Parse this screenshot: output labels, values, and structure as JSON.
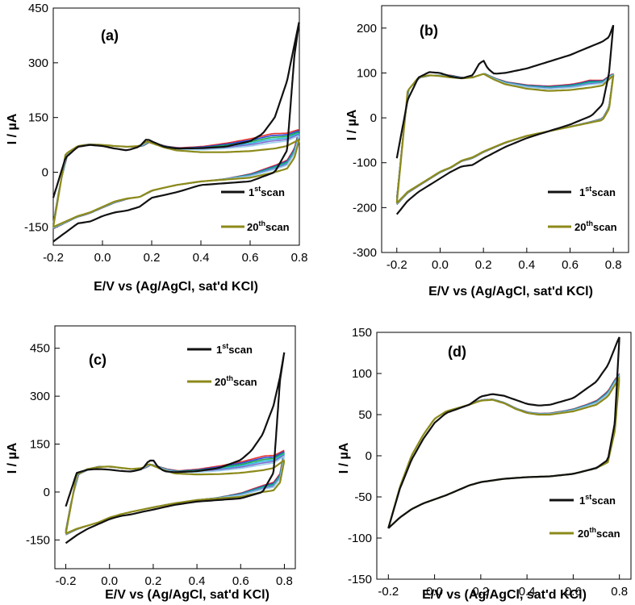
{
  "colors": {
    "first_scan": "#111111",
    "last_scan": "#8c8a1a",
    "mid_scans": [
      "#e6312b",
      "#2a45d6",
      "#1aa84a",
      "#29b7d8",
      "#7a6ad0",
      "#9bd0e8"
    ]
  },
  "chart_data": [
    {
      "type": "line",
      "panel_label": "(a)",
      "xlabel": "E/V  vs (Ag/AgCl, sat'd KCl)",
      "ylabel": "I / µA",
      "xlim": [
        -0.2,
        0.8
      ],
      "ylim": [
        -200,
        450
      ],
      "xticks": [
        -0.2,
        0.0,
        0.2,
        0.4,
        0.6,
        0.8
      ],
      "yticks": [
        -150,
        0,
        150,
        300,
        450
      ],
      "legend_position": "bottom-right",
      "series": [
        {
          "name": "1st scan",
          "anodic_x": [
            -0.2,
            -0.15,
            -0.1,
            -0.05,
            0.0,
            0.05,
            0.1,
            0.15,
            0.18,
            0.2,
            0.25,
            0.3,
            0.4,
            0.5,
            0.6,
            0.65,
            0.7,
            0.75,
            0.78,
            0.8
          ],
          "anodic_y": [
            -70,
            40,
            70,
            75,
            72,
            65,
            60,
            70,
            92,
            85,
            70,
            65,
            66,
            70,
            85,
            105,
            150,
            250,
            350,
            415
          ],
          "cathodic_x": [
            0.8,
            0.78,
            0.75,
            0.7,
            0.6,
            0.5,
            0.4,
            0.3,
            0.2,
            0.15,
            0.1,
            0.05,
            0.0,
            -0.05,
            -0.1,
            -0.15,
            -0.2
          ],
          "cathodic_y": [
            415,
            320,
            60,
            0,
            -25,
            -30,
            -35,
            -55,
            -70,
            -95,
            -105,
            -110,
            -120,
            -135,
            -140,
            -165,
            -190
          ]
        },
        {
          "name": "20th scan",
          "anodic_x": [
            -0.2,
            -0.15,
            -0.1,
            -0.05,
            0.0,
            0.05,
            0.1,
            0.15,
            0.18,
            0.2,
            0.25,
            0.3,
            0.4,
            0.5,
            0.6,
            0.7,
            0.75,
            0.8
          ],
          "anodic_y": [
            -150,
            50,
            72,
            76,
            75,
            72,
            70,
            72,
            85,
            80,
            68,
            60,
            55,
            55,
            58,
            65,
            72,
            90
          ],
          "cathodic_x": [
            0.8,
            0.78,
            0.75,
            0.7,
            0.6,
            0.5,
            0.4,
            0.3,
            0.2,
            0.15,
            0.1,
            0.05,
            0.0,
            -0.05,
            -0.1,
            -0.15,
            -0.2
          ],
          "cathodic_y": [
            90,
            40,
            10,
            0,
            -15,
            -20,
            -25,
            -35,
            -50,
            -68,
            -72,
            -80,
            -95,
            -110,
            -120,
            -135,
            -150
          ]
        }
      ]
    },
    {
      "type": "line",
      "panel_label": "(b)",
      "xlabel": "E/V  vs (Ag/AgCl, sat'd KCl)",
      "ylabel": "I / µA",
      "xlim": [
        -0.27,
        0.87
      ],
      "ylim": [
        -300,
        250
      ],
      "xticks": [
        -0.2,
        0.0,
        0.2,
        0.4,
        0.6,
        0.8
      ],
      "yticks": [
        -300,
        -200,
        -100,
        0,
        100,
        200
      ],
      "legend_position": "bottom-right",
      "series": [
        {
          "name": "1st scan",
          "anodic_x": [
            -0.2,
            -0.15,
            -0.1,
            -0.05,
            0.0,
            0.05,
            0.1,
            0.15,
            0.18,
            0.2,
            0.22,
            0.25,
            0.3,
            0.4,
            0.5,
            0.6,
            0.7,
            0.75,
            0.78,
            0.8
          ],
          "anodic_y": [
            -90,
            40,
            90,
            102,
            100,
            92,
            88,
            95,
            120,
            128,
            110,
            98,
            100,
            110,
            125,
            140,
            160,
            170,
            180,
            207
          ],
          "cathodic_x": [
            0.8,
            0.78,
            0.75,
            0.7,
            0.6,
            0.5,
            0.4,
            0.3,
            0.2,
            0.15,
            0.1,
            0.05,
            0.0,
            -0.05,
            -0.1,
            -0.15,
            -0.2
          ],
          "cathodic_y": [
            207,
            100,
            30,
            5,
            -15,
            -30,
            -45,
            -65,
            -90,
            -105,
            -108,
            -120,
            -135,
            -150,
            -165,
            -185,
            -215
          ]
        },
        {
          "name": "20th scan",
          "anodic_x": [
            -0.2,
            -0.15,
            -0.1,
            -0.05,
            0.0,
            0.05,
            0.1,
            0.15,
            0.2,
            0.25,
            0.3,
            0.4,
            0.5,
            0.6,
            0.7,
            0.75,
            0.8
          ],
          "anodic_y": [
            -190,
            60,
            90,
            95,
            93,
            90,
            88,
            90,
            98,
            85,
            75,
            65,
            60,
            62,
            68,
            72,
            95
          ],
          "cathodic_x": [
            0.8,
            0.78,
            0.75,
            0.7,
            0.6,
            0.5,
            0.4,
            0.3,
            0.2,
            0.15,
            0.1,
            0.05,
            0.0,
            -0.05,
            -0.1,
            -0.15,
            -0.2
          ],
          "cathodic_y": [
            95,
            20,
            -5,
            -10,
            -20,
            -30,
            -40,
            -55,
            -75,
            -88,
            -95,
            -110,
            -120,
            -135,
            -150,
            -165,
            -190
          ]
        }
      ]
    },
    {
      "type": "line",
      "panel_label": "(c)",
      "xlabel": "E/V  vs (Ag/AgCl, sat'd KCl)",
      "ylabel": "I / µA",
      "xlim": [
        -0.25,
        0.85
      ],
      "ylim": [
        -240,
        520
      ],
      "xticks": [
        -0.2,
        0.0,
        0.2,
        0.4,
        0.6,
        0.8
      ],
      "yticks": [
        -150,
        0,
        150,
        300,
        450
      ],
      "legend_position": "top-right",
      "series": [
        {
          "name": "1st scan",
          "anodic_x": [
            -0.2,
            -0.15,
            -0.1,
            -0.05,
            0.0,
            0.05,
            0.1,
            0.15,
            0.18,
            0.2,
            0.22,
            0.25,
            0.3,
            0.4,
            0.5,
            0.6,
            0.65,
            0.7,
            0.75,
            0.78,
            0.8
          ],
          "anodic_y": [
            -45,
            60,
            70,
            72,
            70,
            66,
            64,
            72,
            98,
            100,
            80,
            65,
            62,
            65,
            75,
            100,
            130,
            180,
            270,
            360,
            440
          ],
          "cathodic_x": [
            0.8,
            0.78,
            0.75,
            0.7,
            0.6,
            0.5,
            0.4,
            0.3,
            0.2,
            0.15,
            0.1,
            0.05,
            0.0,
            -0.05,
            -0.1,
            -0.15,
            -0.2
          ],
          "cathodic_y": [
            440,
            350,
            60,
            0,
            -20,
            -25,
            -30,
            -40,
            -55,
            -62,
            -70,
            -75,
            -85,
            -100,
            -115,
            -135,
            -160
          ]
        },
        {
          "name": "20th scan",
          "anodic_x": [
            -0.2,
            -0.15,
            -0.1,
            -0.05,
            0.0,
            0.05,
            0.1,
            0.15,
            0.18,
            0.2,
            0.25,
            0.3,
            0.4,
            0.5,
            0.6,
            0.7,
            0.75,
            0.8
          ],
          "anodic_y": [
            -130,
            55,
            72,
            78,
            80,
            76,
            72,
            75,
            88,
            82,
            68,
            58,
            55,
            56,
            60,
            68,
            75,
            100
          ],
          "cathodic_x": [
            0.8,
            0.78,
            0.75,
            0.7,
            0.6,
            0.5,
            0.4,
            0.3,
            0.2,
            0.15,
            0.1,
            0.05,
            0.0,
            -0.05,
            -0.1,
            -0.15,
            -0.2
          ],
          "cathodic_y": [
            100,
            30,
            5,
            0,
            -15,
            -20,
            -25,
            -35,
            -48,
            -55,
            -62,
            -70,
            -80,
            -95,
            -105,
            -115,
            -130
          ]
        }
      ]
    },
    {
      "type": "line",
      "panel_label": "(d)",
      "xlabel": "E/V  vs (Ag/AgCl, sat'd KCl)",
      "ylabel": "I / µA",
      "xlim": [
        -0.25,
        0.85
      ],
      "ylim": [
        -150,
        150
      ],
      "xticks": [
        -0.2,
        0.0,
        0.2,
        0.4,
        0.6,
        0.8
      ],
      "yticks": [
        -150,
        -100,
        -50,
        0,
        50,
        100,
        150
      ],
      "legend_position": "bottom-right",
      "series": [
        {
          "name": "1st scan",
          "anodic_x": [
            -0.2,
            -0.15,
            -0.1,
            -0.05,
            0.0,
            0.05,
            0.1,
            0.15,
            0.2,
            0.25,
            0.3,
            0.35,
            0.4,
            0.45,
            0.5,
            0.6,
            0.7,
            0.75,
            0.8
          ],
          "anodic_y": [
            -88,
            -40,
            -5,
            20,
            40,
            52,
            57,
            62,
            72,
            75,
            73,
            68,
            63,
            61,
            62,
            70,
            90,
            110,
            145
          ],
          "cathodic_x": [
            0.8,
            0.78,
            0.75,
            0.7,
            0.6,
            0.5,
            0.4,
            0.3,
            0.2,
            0.15,
            0.1,
            0.05,
            0.0,
            -0.05,
            -0.1,
            -0.15,
            -0.2
          ],
          "cathodic_y": [
            145,
            40,
            -5,
            -15,
            -22,
            -25,
            -26,
            -28,
            -32,
            -36,
            -42,
            -48,
            -53,
            -58,
            -65,
            -75,
            -88
          ]
        },
        {
          "name": "20th scan",
          "anodic_x": [
            -0.2,
            -0.15,
            -0.1,
            -0.05,
            0.0,
            0.05,
            0.1,
            0.15,
            0.2,
            0.25,
            0.3,
            0.35,
            0.4,
            0.45,
            0.5,
            0.6,
            0.7,
            0.75,
            0.8
          ],
          "anodic_y": [
            -88,
            -38,
            0,
            25,
            45,
            54,
            58,
            62,
            67,
            68,
            64,
            57,
            52,
            50,
            50,
            54,
            62,
            72,
            95
          ],
          "cathodic_x": [
            0.8,
            0.78,
            0.75,
            0.7,
            0.6,
            0.5,
            0.4,
            0.3,
            0.2,
            0.15,
            0.1,
            0.05,
            0.0,
            -0.05,
            -0.1,
            -0.15,
            -0.2
          ],
          "cathodic_y": [
            95,
            30,
            -8,
            -15,
            -22,
            -25,
            -26,
            -28,
            -32,
            -36,
            -42,
            -48,
            -53,
            -58,
            -65,
            -75,
            -88
          ]
        }
      ]
    }
  ],
  "legend_texts": {
    "first": {
      "num": "1",
      "sup": "st",
      "word": "scan"
    },
    "last": {
      "num": "20",
      "sup": "th",
      "word": "scan"
    }
  }
}
